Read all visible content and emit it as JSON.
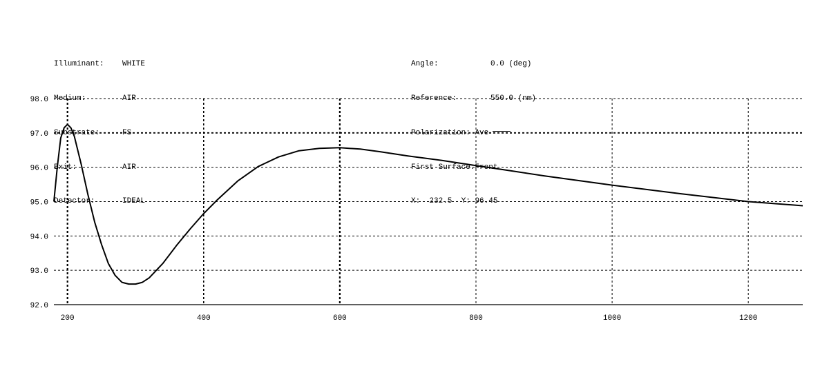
{
  "info_left": [
    {
      "label": "Illuminant:",
      "value": "WHITE"
    },
    {
      "label": "Medium:",
      "value": "AIR"
    },
    {
      "label": "Substrate:",
      "value": "FS"
    },
    {
      "label": "Exit:",
      "value": "AIR"
    },
    {
      "label": "Detector:",
      "value": "IDEAL"
    }
  ],
  "info_right": {
    "angle": {
      "label": "Angle:",
      "value": "0.0 (deg)"
    },
    "reference": {
      "label": "Reference:",
      "value": "550.0 (nm)"
    },
    "polarization": {
      "label": "Polarization:",
      "value": "Ave"
    },
    "first_surface": {
      "label": "First Surface:",
      "value": "Front"
    },
    "cursor": {
      "x_label": "X:",
      "x_value": "232.5",
      "y_label": "Y:",
      "y_value": "96.45"
    }
  },
  "colors": {
    "curve": "#000000",
    "grid": "#000000",
    "background": "#ffffff"
  },
  "chart_data": {
    "type": "line",
    "title": "",
    "xlabel": "",
    "ylabel": "",
    "xlim": [
      180,
      1280
    ],
    "ylim": [
      92.0,
      98.0
    ],
    "x_ticks": [
      200,
      400,
      600,
      800,
      1000,
      1200
    ],
    "y_ticks": [
      92.0,
      93.0,
      94.0,
      95.0,
      96.0,
      97.0,
      98.0
    ],
    "x_tick_labels": [
      "200",
      "400",
      "600",
      "800",
      "1000",
      "1200"
    ],
    "y_tick_labels": [
      "92.0",
      "93.0",
      "94.0",
      "95.0",
      "96.0",
      "97.0",
      "98.0"
    ],
    "grid": true,
    "legend": "header",
    "series": [
      {
        "name": "Ave",
        "x": [
          180,
          185,
          190,
          195,
          200,
          205,
          210,
          220,
          230,
          240,
          250,
          260,
          270,
          280,
          290,
          300,
          310,
          320,
          340,
          360,
          380,
          400,
          420,
          450,
          480,
          510,
          540,
          570,
          600,
          630,
          660,
          700,
          750,
          800,
          850,
          900,
          1000,
          1100,
          1200,
          1280
        ],
        "y": [
          95.0,
          96.0,
          96.85,
          97.15,
          97.25,
          97.15,
          96.9,
          96.1,
          95.2,
          94.4,
          93.75,
          93.2,
          92.85,
          92.65,
          92.6,
          92.6,
          92.65,
          92.78,
          93.2,
          93.72,
          94.2,
          94.65,
          95.05,
          95.6,
          96.02,
          96.3,
          96.48,
          96.55,
          96.57,
          96.53,
          96.45,
          96.33,
          96.2,
          96.05,
          95.9,
          95.75,
          95.48,
          95.23,
          95.0,
          94.88
        ]
      }
    ]
  }
}
